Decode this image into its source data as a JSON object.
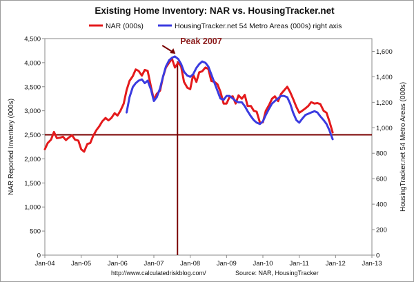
{
  "chart_data": {
    "type": "line",
    "title": "Existing Home Inventory: NAR vs. HousingTracker.net",
    "y_left_label": "NAR Reported Inventory (000s)",
    "y_right_label": "HousingTracker.net 54 Metro Areas (000s)",
    "y_left_range": [
      0,
      4500
    ],
    "y_right_range": [
      0,
      1700
    ],
    "y_left_ticks": [
      "0",
      "500",
      "1,000",
      "1,500",
      "2,000",
      "2,500",
      "3,000",
      "3,500",
      "4,000",
      "4,500"
    ],
    "y_right_ticks": [
      "0",
      "200",
      "400",
      "600",
      "800",
      "1,000",
      "1,200",
      "1,400",
      "1,600"
    ],
    "x_ticks": [
      "Jan-04",
      "Jan-05",
      "Jan-06",
      "Jan-07",
      "Jan-08",
      "Jan-09",
      "Jan-10",
      "Jan-11",
      "Jan-12",
      "Jan-13"
    ],
    "legend_position": "top",
    "series": [
      {
        "name": "NAR (000s)",
        "axis": "left",
        "color": "#e41a1c",
        "points": [
          [
            2004.0,
            2200
          ],
          [
            2004.08,
            2330
          ],
          [
            2004.17,
            2400
          ],
          [
            2004.25,
            2560
          ],
          [
            2004.33,
            2430
          ],
          [
            2004.42,
            2440
          ],
          [
            2004.5,
            2460
          ],
          [
            2004.58,
            2390
          ],
          [
            2004.67,
            2450
          ],
          [
            2004.75,
            2490
          ],
          [
            2004.83,
            2400
          ],
          [
            2004.92,
            2380
          ],
          [
            2005.0,
            2200
          ],
          [
            2005.08,
            2150
          ],
          [
            2005.17,
            2310
          ],
          [
            2005.25,
            2330
          ],
          [
            2005.33,
            2480
          ],
          [
            2005.42,
            2600
          ],
          [
            2005.5,
            2680
          ],
          [
            2005.58,
            2780
          ],
          [
            2005.67,
            2850
          ],
          [
            2005.75,
            2800
          ],
          [
            2005.83,
            2850
          ],
          [
            2005.92,
            2950
          ],
          [
            2006.0,
            2900
          ],
          [
            2006.08,
            3000
          ],
          [
            2006.17,
            3150
          ],
          [
            2006.25,
            3430
          ],
          [
            2006.33,
            3620
          ],
          [
            2006.42,
            3720
          ],
          [
            2006.5,
            3860
          ],
          [
            2006.58,
            3830
          ],
          [
            2006.67,
            3730
          ],
          [
            2006.75,
            3850
          ],
          [
            2006.83,
            3830
          ],
          [
            2006.92,
            3500
          ],
          [
            2007.0,
            3230
          ],
          [
            2007.08,
            3350
          ],
          [
            2007.17,
            3420
          ],
          [
            2007.25,
            3700
          ],
          [
            2007.33,
            3900
          ],
          [
            2007.42,
            4000
          ],
          [
            2007.5,
            4080
          ],
          [
            2007.58,
            3900
          ],
          [
            2007.67,
            4000
          ],
          [
            2007.75,
            3920
          ],
          [
            2007.83,
            3600
          ],
          [
            2007.92,
            3480
          ],
          [
            2008.0,
            3450
          ],
          [
            2008.08,
            3750
          ],
          [
            2008.17,
            3600
          ],
          [
            2008.25,
            3800
          ],
          [
            2008.33,
            3820
          ],
          [
            2008.42,
            3900
          ],
          [
            2008.5,
            3870
          ],
          [
            2008.58,
            3620
          ],
          [
            2008.67,
            3600
          ],
          [
            2008.75,
            3550
          ],
          [
            2008.83,
            3400
          ],
          [
            2008.92,
            3150
          ],
          [
            2009.0,
            3150
          ],
          [
            2009.08,
            3280
          ],
          [
            2009.17,
            3300
          ],
          [
            2009.25,
            3150
          ],
          [
            2009.33,
            3320
          ],
          [
            2009.42,
            3250
          ],
          [
            2009.5,
            3330
          ],
          [
            2009.58,
            3100
          ],
          [
            2009.67,
            3100
          ],
          [
            2009.75,
            3000
          ],
          [
            2009.83,
            2980
          ],
          [
            2009.92,
            2750
          ],
          [
            2010.0,
            2760
          ],
          [
            2010.08,
            3000
          ],
          [
            2010.17,
            3120
          ],
          [
            2010.25,
            3250
          ],
          [
            2010.33,
            3300
          ],
          [
            2010.42,
            3200
          ],
          [
            2010.5,
            3350
          ],
          [
            2010.58,
            3420
          ],
          [
            2010.67,
            3500
          ],
          [
            2010.75,
            3390
          ],
          [
            2010.83,
            3250
          ],
          [
            2010.92,
            3080
          ],
          [
            2011.0,
            2960
          ],
          [
            2011.08,
            3000
          ],
          [
            2011.17,
            3050
          ],
          [
            2011.25,
            3100
          ],
          [
            2011.33,
            3180
          ],
          [
            2011.42,
            3150
          ],
          [
            2011.5,
            3160
          ],
          [
            2011.58,
            3140
          ],
          [
            2011.67,
            3000
          ],
          [
            2011.75,
            2960
          ],
          [
            2011.83,
            2780
          ],
          [
            2011.92,
            2550
          ]
        ]
      },
      {
        "name": "HousingTracker.net 54 Metro Areas (000s) right axis",
        "axis": "right",
        "color": "#3b3be0",
        "points": [
          [
            2006.25,
            1120
          ],
          [
            2006.33,
            1240
          ],
          [
            2006.42,
            1320
          ],
          [
            2006.5,
            1350
          ],
          [
            2006.58,
            1370
          ],
          [
            2006.67,
            1380
          ],
          [
            2006.75,
            1350
          ],
          [
            2006.83,
            1370
          ],
          [
            2006.92,
            1300
          ],
          [
            2007.0,
            1210
          ],
          [
            2007.08,
            1240
          ],
          [
            2007.17,
            1310
          ],
          [
            2007.25,
            1400
          ],
          [
            2007.33,
            1480
          ],
          [
            2007.42,
            1530
          ],
          [
            2007.5,
            1550
          ],
          [
            2007.58,
            1560
          ],
          [
            2007.67,
            1540
          ],
          [
            2007.75,
            1500
          ],
          [
            2007.83,
            1440
          ],
          [
            2007.92,
            1410
          ],
          [
            2008.0,
            1400
          ],
          [
            2008.08,
            1420
          ],
          [
            2008.17,
            1470
          ],
          [
            2008.25,
            1500
          ],
          [
            2008.33,
            1520
          ],
          [
            2008.42,
            1510
          ],
          [
            2008.5,
            1480
          ],
          [
            2008.58,
            1420
          ],
          [
            2008.67,
            1350
          ],
          [
            2008.75,
            1290
          ],
          [
            2008.83,
            1230
          ],
          [
            2008.92,
            1220
          ],
          [
            2009.0,
            1250
          ],
          [
            2009.08,
            1250
          ],
          [
            2009.17,
            1230
          ],
          [
            2009.25,
            1210
          ],
          [
            2009.33,
            1200
          ],
          [
            2009.42,
            1200
          ],
          [
            2009.5,
            1170
          ],
          [
            2009.58,
            1130
          ],
          [
            2009.67,
            1090
          ],
          [
            2009.75,
            1060
          ],
          [
            2009.83,
            1040
          ],
          [
            2009.92,
            1030
          ],
          [
            2010.0,
            1050
          ],
          [
            2010.08,
            1100
          ],
          [
            2010.17,
            1150
          ],
          [
            2010.25,
            1190
          ],
          [
            2010.33,
            1210
          ],
          [
            2010.42,
            1230
          ],
          [
            2010.5,
            1250
          ],
          [
            2010.58,
            1250
          ],
          [
            2010.67,
            1240
          ],
          [
            2010.75,
            1190
          ],
          [
            2010.83,
            1120
          ],
          [
            2010.92,
            1060
          ],
          [
            2011.0,
            1040
          ],
          [
            2011.08,
            1070
          ],
          [
            2011.17,
            1100
          ],
          [
            2011.25,
            1110
          ],
          [
            2011.33,
            1120
          ],
          [
            2011.42,
            1130
          ],
          [
            2011.5,
            1120
          ],
          [
            2011.58,
            1090
          ],
          [
            2011.67,
            1060
          ],
          [
            2011.75,
            1030
          ],
          [
            2011.83,
            980
          ],
          [
            2011.92,
            910
          ]
        ]
      }
    ],
    "reference_line": {
      "axis": "left",
      "value": 2500,
      "color": "#7a0000"
    },
    "peak_marker": {
      "x": 2007.65,
      "label": "Peak 2007",
      "color": "#7a0000"
    }
  },
  "footer": {
    "url": "http://www.calculatedriskblog.com/",
    "source": "Source: NAR, HousingTracker"
  }
}
